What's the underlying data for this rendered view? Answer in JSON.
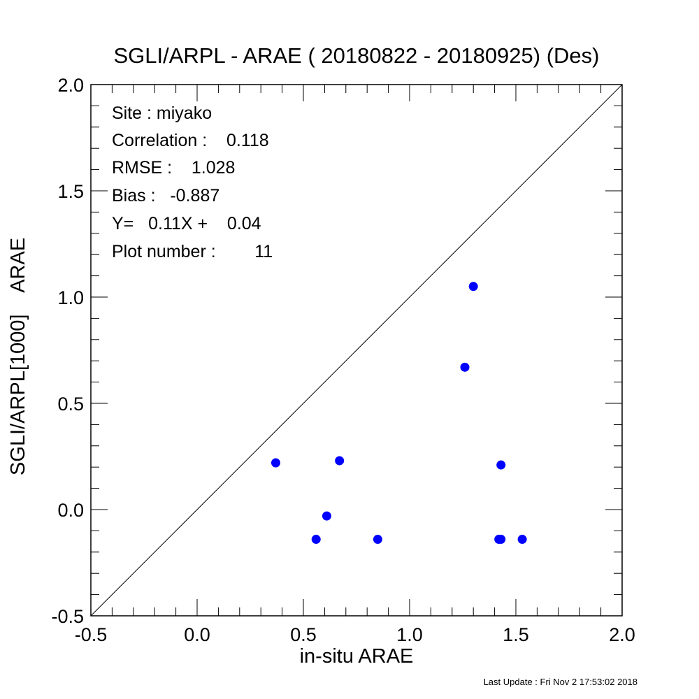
{
  "chart_data": {
    "type": "scatter",
    "title": "SGLI/ARPL - ARAE ( 20180822 - 20180925) (Des)",
    "xlabel": "in-situ ARAE",
    "ylabel": "SGLI/ARPL[1000]    ARAE",
    "xlim": [
      -0.5,
      2.0
    ],
    "ylim": [
      -0.5,
      2.0
    ],
    "x_ticks": [
      "-0.5",
      "0.0",
      "0.5",
      "1.0",
      "1.5",
      "2.0"
    ],
    "y_ticks": [
      "-0.5",
      "0.0",
      "0.5",
      "1.0",
      "1.5",
      "2.0"
    ],
    "grid": false,
    "reference_line": "1:1",
    "marker_color": "#0000ff",
    "points": [
      {
        "x": 0.37,
        "y": 0.22
      },
      {
        "x": 0.67,
        "y": 0.23
      },
      {
        "x": 0.61,
        "y": -0.03
      },
      {
        "x": 0.56,
        "y": -0.14
      },
      {
        "x": 0.85,
        "y": -0.14
      },
      {
        "x": 1.26,
        "y": 0.67
      },
      {
        "x": 1.3,
        "y": 1.05
      },
      {
        "x": 1.43,
        "y": 0.21
      },
      {
        "x": 1.42,
        "y": -0.14
      },
      {
        "x": 1.43,
        "y": -0.14
      },
      {
        "x": 1.53,
        "y": -0.14
      }
    ],
    "annotations": [
      "Site : miyako",
      "Correlation :    0.118",
      "RMSE :    1.028",
      "Bias :   -0.887",
      "Y=   0.11X +    0.04",
      "Plot number :        11"
    ]
  },
  "footer": "Last Update : Fri Nov  2 17:53:02 2018"
}
